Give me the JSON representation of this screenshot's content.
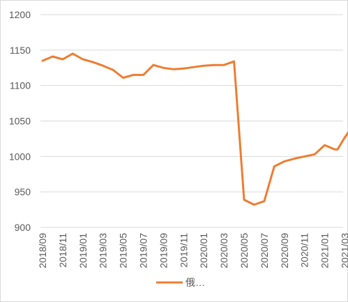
{
  "chart_data": {
    "type": "line",
    "title": "",
    "xlabel": "",
    "ylabel": "",
    "ylim": [
      900,
      1200
    ],
    "yticks": [
      900,
      950,
      1000,
      1050,
      1100,
      1150,
      1200
    ],
    "y_tick_labels": [
      "900",
      "950",
      "1000",
      "1050",
      "1100",
      "1150",
      "1200"
    ],
    "x_tick_labels": [
      "2018/09",
      "2018/11",
      "2019/01",
      "2019/03",
      "2019/05",
      "2019/07",
      "2019/09",
      "2019/11",
      "2020/01",
      "2020/03",
      "2020/05",
      "2020/07",
      "2020/09",
      "2020/11",
      "2021/01",
      "2021/03"
    ],
    "grid": true,
    "legend": "bottom",
    "series": [
      {
        "name": "俄…",
        "color": "#ED7D31",
        "x": [
          "2018/09",
          "2018/10",
          "2018/11",
          "2018/12",
          "2019/01",
          "2019/02",
          "2019/03",
          "2019/04",
          "2019/05",
          "2019/06",
          "2019/07",
          "2019/08",
          "2019/09",
          "2019/10",
          "2019/11",
          "2019/12",
          "2020/01",
          "2020/02",
          "2020/03",
          "2020/04",
          "2020/05",
          "2020/06",
          "2020/07",
          "2020/08",
          "2020/09",
          "2020/10",
          "2020/11",
          "2020/12",
          "2021/01",
          "2021/02",
          "2021/02b",
          "2021/03",
          "2021/04"
        ],
        "values": [
          1135,
          1141,
          1137,
          1145,
          1137,
          1133,
          1128,
          1122,
          1111,
          1115,
          1115,
          1129,
          1125,
          1123,
          1124,
          1126,
          1128,
          1129,
          1129,
          1134,
          939,
          932,
          937,
          986,
          993,
          997,
          1000,
          1003,
          1016,
          1010,
          1010,
          1027,
          1047
        ]
      }
    ]
  }
}
